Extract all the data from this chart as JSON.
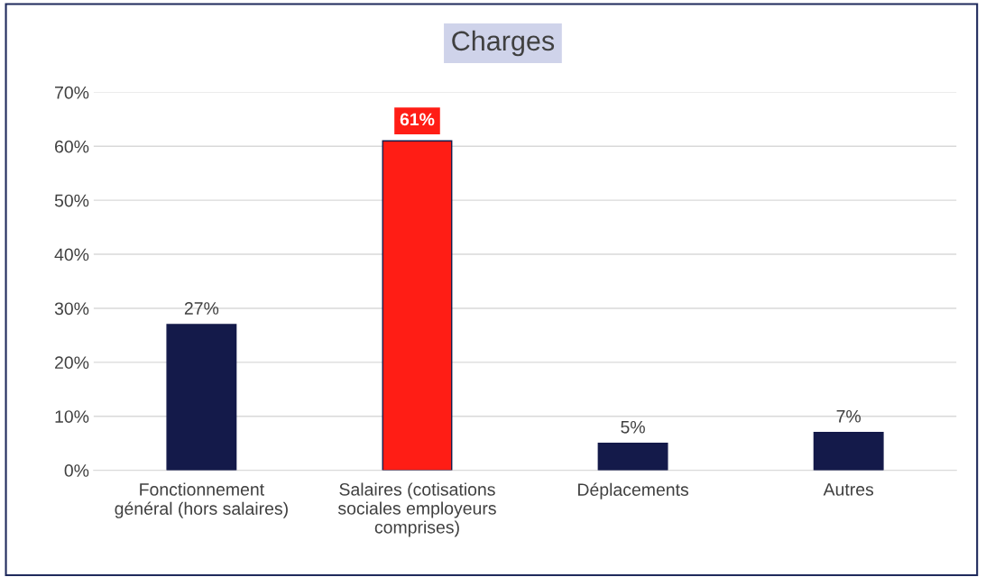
{
  "chart_data": {
    "type": "bar",
    "title": "Charges",
    "categories": [
      "Fonctionnement\ngénéral (hors salaires)",
      "Salaires (cotisations\nsociales employeurs\ncomprises)",
      "Déplacements",
      "Autres"
    ],
    "values": [
      27,
      61,
      5,
      7
    ],
    "colors": [
      "#141a4a",
      "#ff1d15",
      "#141a4a",
      "#141a4a"
    ],
    "value_labels": [
      "27%",
      "61%",
      "5%",
      "7%"
    ],
    "ylim": [
      0,
      70
    ],
    "yticks": [
      {
        "value": 0,
        "label": "0%"
      },
      {
        "value": 10,
        "label": "10%"
      },
      {
        "value": 20,
        "label": "20%"
      },
      {
        "value": 30,
        "label": "30%"
      },
      {
        "value": 40,
        "label": "40%"
      },
      {
        "value": 50,
        "label": "50%"
      },
      {
        "value": 60,
        "label": "60%"
      },
      {
        "value": 70,
        "label": "70%"
      }
    ],
    "grid": "y"
  }
}
